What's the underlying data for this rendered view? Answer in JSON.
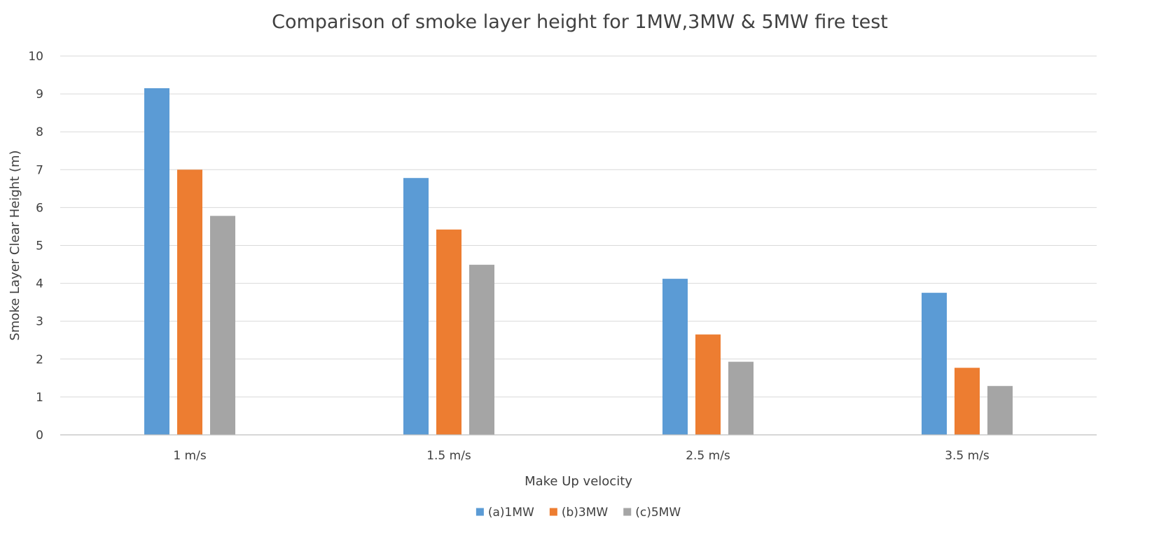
{
  "chart_data": {
    "type": "bar",
    "title": "Comparison of smoke layer height for 1MW,3MW & 5MW fire test",
    "xlabel": "Make Up velocity",
    "ylabel": "Smoke Layer Clear Height (m)",
    "categories": [
      "1 m/s",
      "1.5 m/s",
      "2.5 m/s",
      "3.5 m/s"
    ],
    "ylim": [
      0,
      10
    ],
    "yticks": [
      "0",
      "1",
      "2",
      "3",
      "4",
      "5",
      "6",
      "7",
      "8",
      "9",
      "10"
    ],
    "grid": true,
    "legend_position": "bottom",
    "series": [
      {
        "name": "(a)1MW",
        "color": "#5b9bd5",
        "values": [
          9.15,
          6.78,
          4.12,
          3.75
        ]
      },
      {
        "name": "(b)3MW",
        "color": "#ed7d31",
        "values": [
          7.0,
          5.42,
          2.65,
          1.77
        ]
      },
      {
        "name": "(c)5MW",
        "color": "#a5a5a5",
        "values": [
          5.78,
          4.49,
          1.93,
          1.29
        ]
      }
    ]
  }
}
